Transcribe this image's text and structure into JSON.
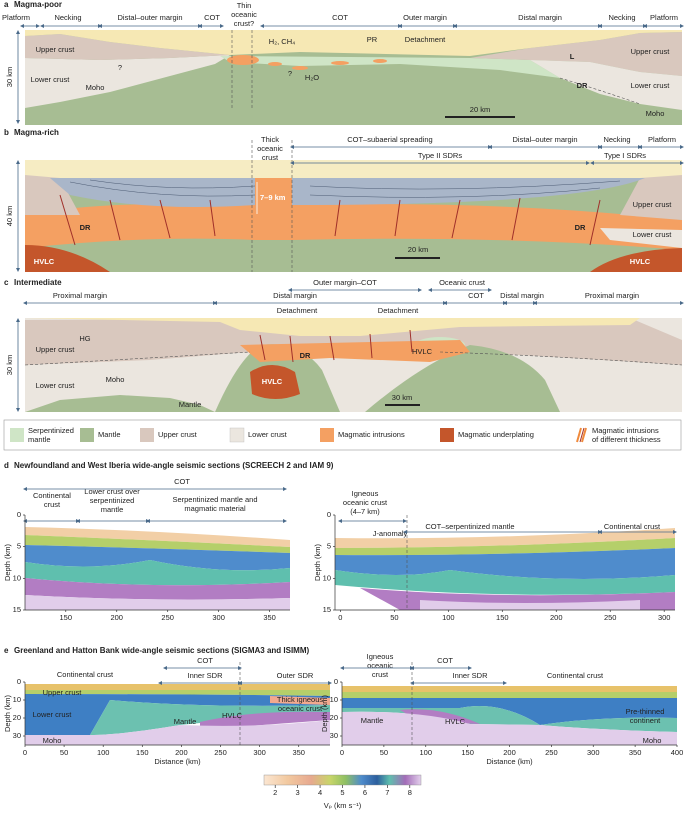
{
  "a": {
    "letter": "a",
    "title": "Magma-poor",
    "depth": "30 km",
    "texts": [
      "Platform",
      "Necking",
      "Distal–outer margin",
      "COT",
      [
        "Thin",
        "oceanic",
        "crust?"
      ],
      "COT",
      "Outer margin",
      "Distal margin",
      "Necking",
      "Platform",
      "Upper crust",
      "Lower crust",
      "Moho",
      "H₂, CH₄",
      "PR",
      "Detachment",
      "H₂O",
      "L",
      "DR",
      "Upper crust",
      "Lower crust",
      "Moho",
      "20 km",
      "?",
      "?"
    ]
  },
  "b": {
    "letter": "b",
    "title": "Magma-rich",
    "depth": "40 km",
    "texts": [
      [
        "Thick",
        "oceanic",
        "crust"
      ],
      "COT–subaerial spreading",
      "Distal–outer margin",
      "Necking",
      "Platform",
      "Type II SDRs",
      "Type I SDRs",
      "7–9 km",
      "DR",
      "DR",
      "Upper crust",
      "Lower crust",
      "HVLC",
      "HVLC",
      "20 km"
    ]
  },
  "c": {
    "letter": "c",
    "title": "Intermediate",
    "depth": "30 km",
    "texts": [
      "Outer margin–COT",
      "Oceanic crust",
      "Proximal margin",
      "Distal margin",
      "COT",
      "Distal margin",
      "Proximal margin",
      "Detachment",
      "Detachment",
      "HG",
      "Upper crust",
      "DR",
      "HVLC",
      "Lower crust",
      "Moho",
      "HVLC",
      "Mantle",
      "30 km"
    ]
  },
  "legend": [
    [
      "Serpentinized",
      "mantle"
    ],
    "Mantle",
    "Upper crust",
    "Lower crust",
    "Magmatic intrusions",
    "Magmatic underplating",
    [
      "Magmatic intrusions",
      "of different thickness"
    ]
  ],
  "d": {
    "letter": "d",
    "title": "Newfoundland and West Iberia wide-angle seismic sections (SCREECH 2 and IAM 9)",
    "texts": [
      "COT",
      [
        "Continental",
        "crust"
      ],
      [
        "Lower crust over",
        "serpentinized",
        "mantle"
      ],
      [
        "Serpentinized mantle and",
        "magmatic material"
      ],
      [
        "Igneous",
        "oceanic crust",
        "(4–7 km)"
      ],
      "J-anomaly",
      "COT–serpentinized mantle",
      "Continental crust"
    ],
    "plots": [
      {
        "ylabel": "Depth (km)",
        "xlim": [
          110,
          370
        ],
        "ylim": [
          0,
          15
        ],
        "xticks": [
          150,
          200,
          250,
          300,
          350
        ],
        "yticks": [
          0,
          5,
          10,
          15
        ]
      },
      {
        "ylabel": "Depth (km)",
        "xlim": [
          -5,
          310
        ],
        "ylim": [
          0,
          15
        ],
        "xticks": [
          0,
          50,
          100,
          150,
          200,
          250,
          300
        ],
        "yticks": [
          0,
          5,
          10,
          15
        ]
      }
    ]
  },
  "e": {
    "letter": "e",
    "title": "Greenland and Hatton Bank wide-angle seismic sections (SIGMA3 and ISIMM)",
    "texts": [
      "Continental crust",
      "COT",
      "Inner SDR",
      "Outer SDR",
      "Upper crust",
      [
        "Thick igneous",
        "oceanic crust"
      ],
      "Lower crust",
      "HVLC",
      "Mantle",
      "Moho",
      [
        "Igneous",
        "oceanic",
        "crust"
      ],
      "COT",
      "Inner SDR",
      "Continental crust",
      "HVLC",
      "Mantle",
      [
        "Pre-thinned",
        "continent"
      ],
      "Moho"
    ],
    "plots": [
      {
        "xlabel": "Distance (km)",
        "ylabel": "Depth (km)",
        "xlim": [
          0,
          390
        ],
        "ylim": [
          0,
          35
        ],
        "xticks": [
          0,
          50,
          100,
          150,
          200,
          250,
          300,
          350
        ],
        "yticks": [
          0,
          10,
          20,
          30
        ]
      },
      {
        "xlabel": "Distance (km)",
        "ylabel": "Depth (km)",
        "xlim": [
          0,
          400
        ],
        "ylim": [
          0,
          35
        ],
        "xticks": [
          0,
          50,
          100,
          150,
          200,
          250,
          300,
          350,
          400
        ],
        "yticks": [
          0,
          10,
          20,
          30
        ]
      }
    ]
  },
  "colorbar": {
    "lim": [
      1.5,
      8.5
    ],
    "ticks": [
      2,
      3,
      4,
      5,
      6,
      7,
      8
    ],
    "label": "Vₚ (km s⁻¹)"
  }
}
